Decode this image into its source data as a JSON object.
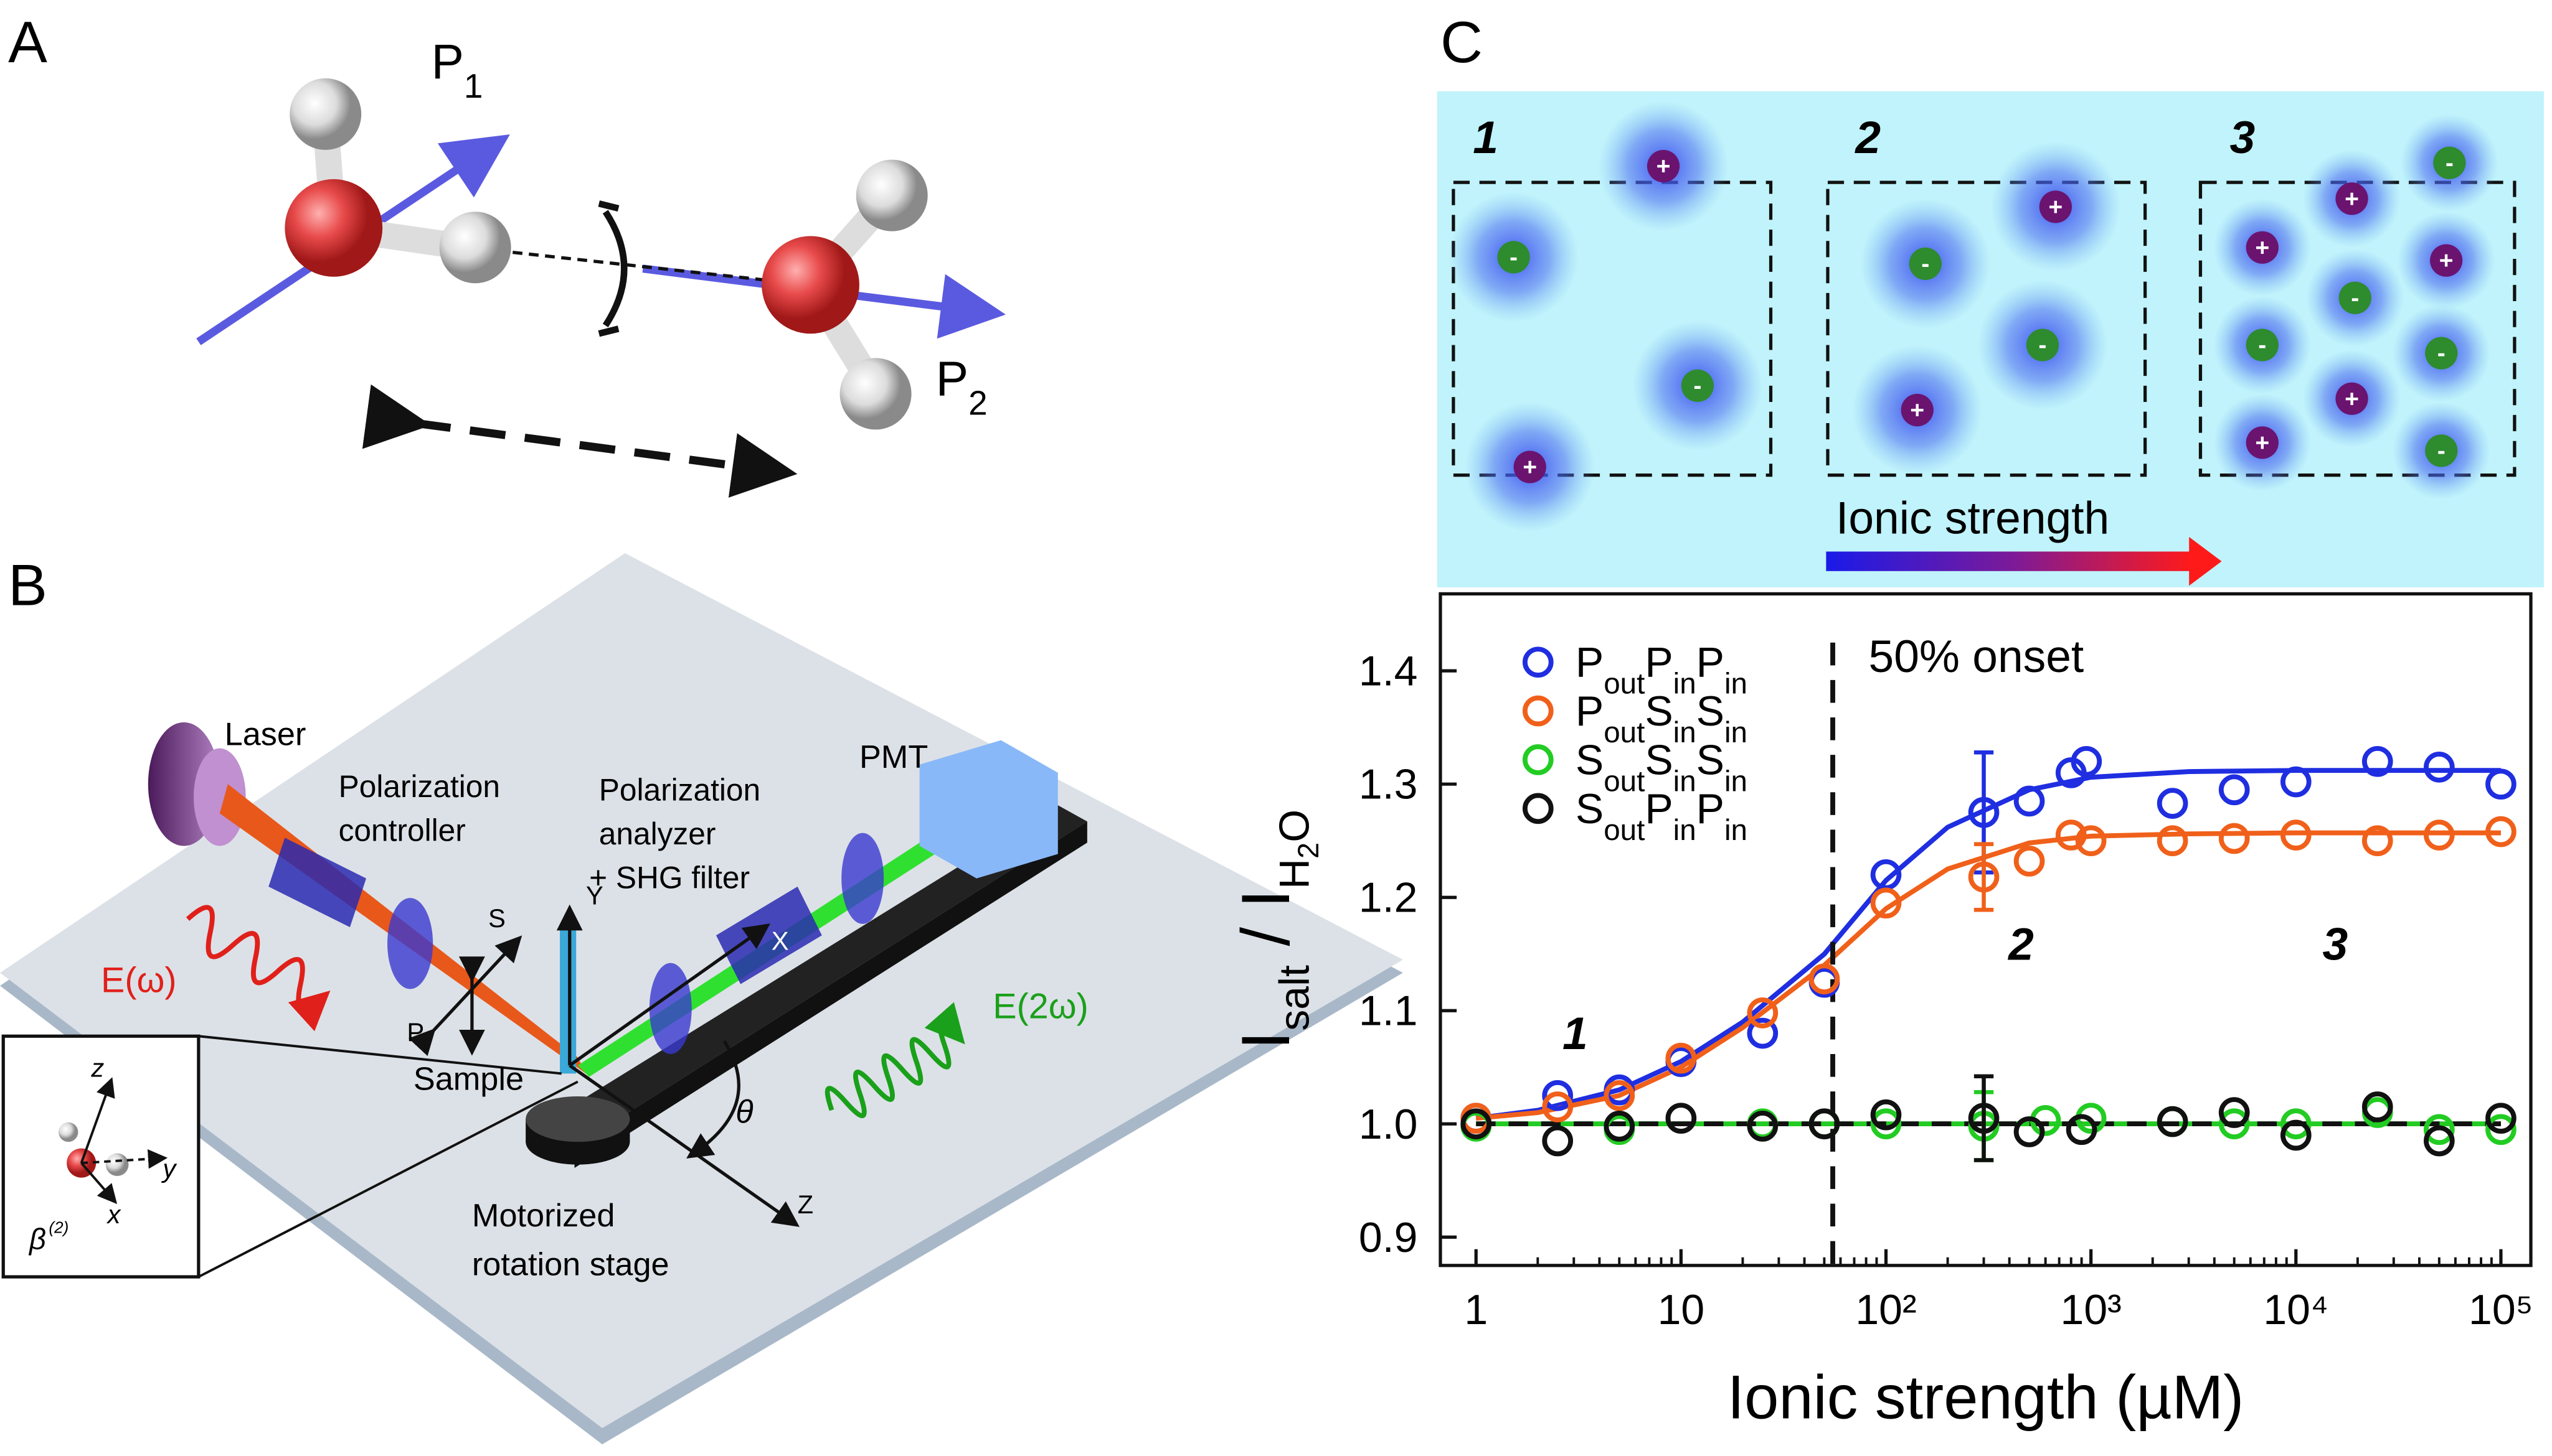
{
  "panel_a": {
    "label": "A",
    "p1": "P1",
    "p2": "P2"
  },
  "panel_b": {
    "label": "B",
    "laser": "Laser",
    "controller": [
      "Polarization",
      "controller"
    ],
    "analyzer": [
      "Polarization",
      "analyzer",
      "+ SHG filter"
    ],
    "pmt": "PMT",
    "e_omega": "E(ω)",
    "e_2omega": "E(2ω)",
    "s": "S",
    "p": "P",
    "y_axis": "Y",
    "x_axis": "X",
    "z_axis": "Z",
    "theta": "θ",
    "sample": "Sample",
    "stage": [
      "Motorized",
      "rotation stage"
    ],
    "inset": {
      "z": "z",
      "y": "y",
      "x": "x",
      "beta": "β",
      "beta_sup": "(2)"
    }
  },
  "panel_c": {
    "label": "C",
    "boxes": [
      {
        "label": "1",
        "ions": [
          "+",
          "-",
          "-",
          "+"
        ]
      },
      {
        "label": "2",
        "ions": [
          "+",
          "-",
          "-",
          "+"
        ]
      },
      {
        "label": "3",
        "ions": [
          "-",
          "+",
          "+",
          "+",
          "-",
          "-",
          "-",
          "+",
          "+",
          "-"
        ]
      }
    ],
    "arrow_label": "Ionic strength"
  },
  "chart_data": {
    "type": "scatter",
    "xlabel": "Ionic strength (µM)",
    "ylabel": [
      {
        "t": "I"
      },
      {
        "t": "salt",
        "sub": 1
      },
      {
        "t": " / I"
      },
      {
        "t": "H",
        "sub": 1
      },
      {
        "t": "2",
        "sub": 2
      },
      {
        "t": "O",
        "sub": 1
      }
    ],
    "xscale": "log",
    "xlim": [
      0.67,
      140000
    ],
    "ylim": [
      0.875,
      1.468
    ],
    "xticks": [
      1,
      10,
      {
        "value": 100,
        "label": "10²"
      },
      {
        "value": 1000,
        "label": "10³"
      },
      {
        "value": 10000,
        "label": "10⁴"
      },
      {
        "value": 100000,
        "label": "10⁵"
      }
    ],
    "yticks": [
      0.9,
      1.0,
      1.1,
      1.2,
      1.3,
      1.4
    ],
    "legend": "upper left",
    "onset_x": 55,
    "onset_label": "50% onset",
    "annotations": [
      "1",
      "2",
      "3"
    ],
    "series": [
      {
        "name": "PoutPinPin",
        "color": "#1f2ee0",
        "x": [
          1,
          2.5,
          5,
          10,
          25,
          50,
          100,
          300,
          500,
          800,
          950,
          2500,
          5000,
          10000,
          25000,
          50000,
          100000
        ],
        "values": [
          1.005,
          1.025,
          1.03,
          1.055,
          1.08,
          1.125,
          1.22,
          1.275,
          1.285,
          1.31,
          1.32,
          1.283,
          1.295,
          1.302,
          1.32,
          1.315,
          1.3
        ],
        "errors": [
          null,
          null,
          null,
          null,
          null,
          null,
          null,
          0.053,
          null,
          null,
          null,
          null,
          null,
          null,
          null,
          null,
          null
        ]
      },
      {
        "name": "PoutSinSin",
        "color": "#f0601a",
        "x": [
          1,
          2.5,
          5,
          10,
          25,
          50,
          100,
          300,
          500,
          800,
          1000,
          2500,
          5000,
          10000,
          25000,
          50000,
          100000
        ],
        "values": [
          1.005,
          1.015,
          1.025,
          1.058,
          1.098,
          1.128,
          1.195,
          1.218,
          1.232,
          1.255,
          1.25,
          1.25,
          1.252,
          1.255,
          1.25,
          1.255,
          1.258
        ],
        "errors": [
          null,
          null,
          null,
          null,
          null,
          null,
          null,
          0.029,
          null,
          null,
          null,
          null,
          null,
          null,
          null,
          null,
          null
        ]
      },
      {
        "name": "SoutSinSin",
        "color": "#22cc22",
        "x": [
          1,
          5,
          25,
          50,
          100,
          300,
          600,
          1000,
          2500,
          5000,
          10000,
          25000,
          50000,
          100000
        ],
        "values": [
          0.998,
          0.995,
          1.0,
          1.0,
          1.0,
          0.998,
          1.003,
          1.005,
          1.002,
          1.0,
          1.0,
          1.01,
          0.995,
          0.995
        ],
        "errors": [
          null,
          null,
          null,
          null,
          null,
          0.03,
          null,
          null,
          null,
          null,
          null,
          null,
          null,
          null
        ]
      },
      {
        "name": "SoutPinPin",
        "color": "#111111",
        "x": [
          1,
          2.5,
          5,
          10,
          25,
          50,
          100,
          300,
          500,
          900,
          2500,
          5000,
          10000,
          25000,
          50000,
          100000
        ],
        "values": [
          1.0,
          0.985,
          0.998,
          1.005,
          0.998,
          1.0,
          1.008,
          1.005,
          0.993,
          0.995,
          1.002,
          1.01,
          0.99,
          1.015,
          0.985,
          1.005
        ],
        "errors": [
          null,
          null,
          null,
          null,
          null,
          null,
          null,
          0.037,
          null,
          null,
          null,
          null,
          null,
          null,
          null,
          null
        ]
      }
    ],
    "fits": [
      {
        "color": "#1f2ee0",
        "dash": false,
        "x": [
          1,
          2,
          5,
          10,
          20,
          50,
          100,
          200,
          500,
          1000,
          3000,
          10000,
          100000
        ],
        "values": [
          1.005,
          1.012,
          1.03,
          1.055,
          1.09,
          1.15,
          1.215,
          1.262,
          1.295,
          1.306,
          1.311,
          1.312,
          1.312
        ]
      },
      {
        "color": "#f0601a",
        "dash": false,
        "x": [
          1,
          2,
          5,
          10,
          20,
          50,
          100,
          200,
          500,
          1000,
          3000,
          10000,
          100000
        ],
        "values": [
          1.005,
          1.01,
          1.025,
          1.05,
          1.085,
          1.14,
          1.19,
          1.225,
          1.248,
          1.254,
          1.256,
          1.257,
          1.257
        ]
      },
      {
        "color": "#22cc22",
        "dash": false,
        "x": [
          1,
          100000
        ],
        "values": [
          1.0,
          1.0
        ]
      },
      {
        "color": "#111111",
        "dash": true,
        "x": [
          1,
          100000
        ],
        "values": [
          1.0,
          1.0
        ]
      }
    ]
  }
}
